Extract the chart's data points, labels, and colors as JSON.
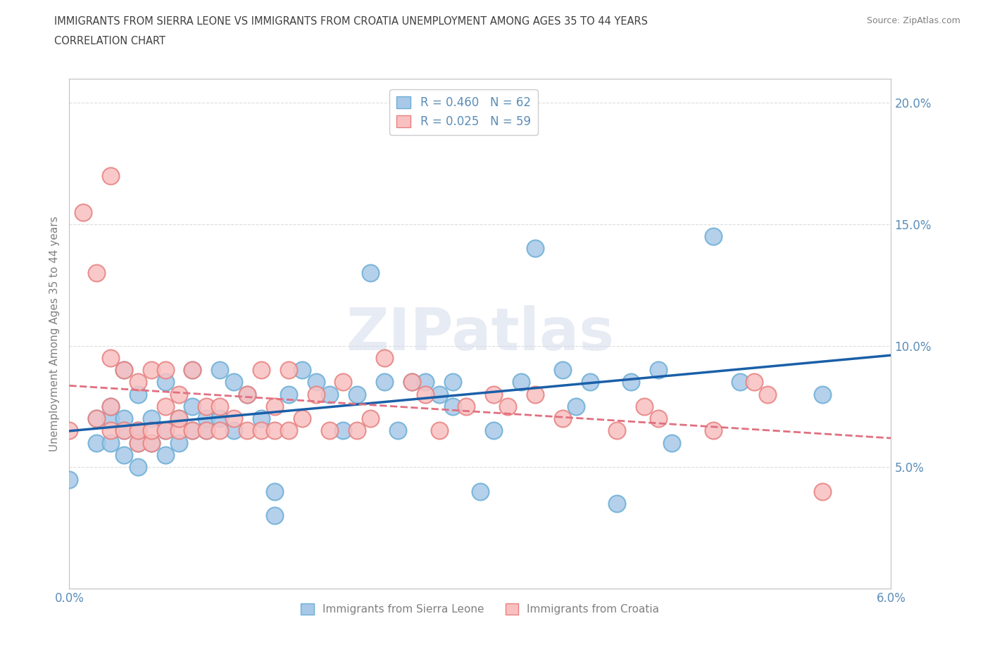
{
  "title_line1": "IMMIGRANTS FROM SIERRA LEONE VS IMMIGRANTS FROM CROATIA UNEMPLOYMENT AMONG AGES 35 TO 44 YEARS",
  "title_line2": "CORRELATION CHART",
  "source": "Source: ZipAtlas.com",
  "xlabel": "",
  "ylabel": "Unemployment Among Ages 35 to 44 years",
  "xlim": [
    0.0,
    0.06
  ],
  "ylim": [
    0.0,
    0.21
  ],
  "xticks": [
    0.0,
    0.01,
    0.02,
    0.03,
    0.04,
    0.05,
    0.06
  ],
  "xticklabels": [
    "0.0%",
    "",
    "",
    "",
    "",
    "",
    "6.0%"
  ],
  "yticks": [
    0.0,
    0.05,
    0.1,
    0.15,
    0.2
  ],
  "yticklabels": [
    "",
    "5.0%",
    "10.0%",
    "15.0%",
    "20.0%"
  ],
  "sierra_leone_color": "#a8c8e8",
  "sierra_leone_edge": "#6baed6",
  "croatia_color": "#f9c0c0",
  "croatia_edge": "#e88080",
  "sierra_leone_R": 0.46,
  "sierra_leone_N": 62,
  "croatia_R": 0.025,
  "croatia_N": 59,
  "legend_label_1": "Immigrants from Sierra Leone",
  "legend_label_2": "Immigrants from Croatia",
  "watermark": "ZIPatlas",
  "sl_trend_color": "#1a5fa8",
  "cr_trend_color": "#e07080",
  "sierra_leone_x": [
    0.0,
    0.002,
    0.002,
    0.003,
    0.003,
    0.003,
    0.004,
    0.004,
    0.004,
    0.004,
    0.005,
    0.005,
    0.005,
    0.005,
    0.006,
    0.006,
    0.007,
    0.007,
    0.007,
    0.008,
    0.008,
    0.009,
    0.009,
    0.009,
    0.01,
    0.01,
    0.011,
    0.011,
    0.012,
    0.012,
    0.013,
    0.014,
    0.015,
    0.015,
    0.016,
    0.017,
    0.018,
    0.019,
    0.02,
    0.021,
    0.022,
    0.023,
    0.024,
    0.025,
    0.026,
    0.027,
    0.028,
    0.028,
    0.03,
    0.031,
    0.033,
    0.034,
    0.036,
    0.037,
    0.038,
    0.04,
    0.041,
    0.043,
    0.044,
    0.047,
    0.049,
    0.055
  ],
  "sierra_leone_y": [
    0.045,
    0.06,
    0.07,
    0.06,
    0.07,
    0.075,
    0.055,
    0.065,
    0.07,
    0.09,
    0.05,
    0.06,
    0.065,
    0.08,
    0.06,
    0.07,
    0.055,
    0.065,
    0.085,
    0.06,
    0.07,
    0.065,
    0.075,
    0.09,
    0.065,
    0.07,
    0.07,
    0.09,
    0.065,
    0.085,
    0.08,
    0.07,
    0.03,
    0.04,
    0.08,
    0.09,
    0.085,
    0.08,
    0.065,
    0.08,
    0.13,
    0.085,
    0.065,
    0.085,
    0.085,
    0.08,
    0.075,
    0.085,
    0.04,
    0.065,
    0.085,
    0.14,
    0.09,
    0.075,
    0.085,
    0.035,
    0.085,
    0.09,
    0.06,
    0.145,
    0.085,
    0.08
  ],
  "croatia_x": [
    0.0,
    0.001,
    0.002,
    0.002,
    0.003,
    0.003,
    0.003,
    0.003,
    0.004,
    0.004,
    0.005,
    0.005,
    0.005,
    0.006,
    0.006,
    0.006,
    0.007,
    0.007,
    0.007,
    0.008,
    0.008,
    0.008,
    0.009,
    0.009,
    0.01,
    0.01,
    0.011,
    0.011,
    0.012,
    0.013,
    0.013,
    0.014,
    0.014,
    0.015,
    0.015,
    0.016,
    0.016,
    0.017,
    0.018,
    0.019,
    0.02,
    0.021,
    0.022,
    0.023,
    0.025,
    0.026,
    0.027,
    0.029,
    0.031,
    0.032,
    0.034,
    0.036,
    0.04,
    0.042,
    0.043,
    0.047,
    0.05,
    0.051,
    0.055
  ],
  "croatia_y": [
    0.065,
    0.155,
    0.07,
    0.13,
    0.065,
    0.075,
    0.095,
    0.17,
    0.065,
    0.09,
    0.06,
    0.065,
    0.085,
    0.06,
    0.065,
    0.09,
    0.065,
    0.075,
    0.09,
    0.065,
    0.07,
    0.08,
    0.065,
    0.09,
    0.065,
    0.075,
    0.065,
    0.075,
    0.07,
    0.065,
    0.08,
    0.065,
    0.09,
    0.065,
    0.075,
    0.065,
    0.09,
    0.07,
    0.08,
    0.065,
    0.085,
    0.065,
    0.07,
    0.095,
    0.085,
    0.08,
    0.065,
    0.075,
    0.08,
    0.075,
    0.08,
    0.07,
    0.065,
    0.075,
    0.07,
    0.065,
    0.085,
    0.08,
    0.04
  ],
  "grid_color": "#dddddd",
  "background_color": "#ffffff",
  "title_color": "#404040",
  "tick_color": "#5b8db8",
  "axis_color": "#c0c0c0"
}
